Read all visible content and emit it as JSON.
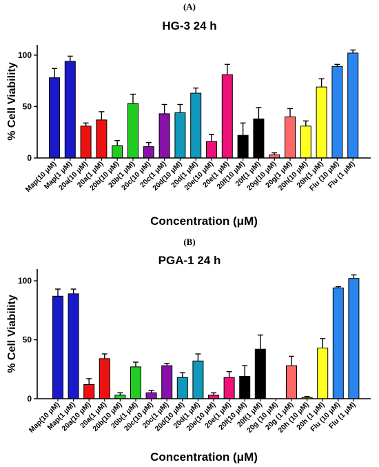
{
  "chart_data": [
    {
      "panel_label": "(A)",
      "type": "bar",
      "title": "HG-3 24 h",
      "xlabel": "Concentration (μM)",
      "ylabel": "% Cell Viability",
      "ylim": [
        0,
        110
      ],
      "yticks": [
        0,
        50,
        100
      ],
      "grid": false,
      "categories": [
        "Map(10 μM)",
        "Map(1 μM)",
        "20a(10 μM)",
        "20a(1 μM)",
        "20b(10 μM)",
        "20b(1 μM)",
        "20c(10 μM)",
        "20c(1 μM)",
        "20d(10 μM)",
        "20d(1 μM)",
        "20e(10 μM)",
        "20e(1 μM)",
        "20f(10 μM)",
        "20f(1 μM)",
        "20g(10 μM)",
        "20g(1 μM)",
        "20h(10 μM)",
        "20h(1 μM)",
        "Flu (10 μM)",
        "Flu (1 μM)"
      ],
      "values": [
        78,
        94,
        31,
        37,
        12,
        53,
        11,
        43,
        44,
        63,
        16,
        81,
        22,
        38,
        3,
        40,
        31,
        69,
        89,
        102
      ],
      "errors": [
        9,
        5,
        3,
        8,
        5,
        9,
        4,
        9,
        8,
        5,
        7,
        10,
        12,
        11,
        2,
        8,
        5,
        8,
        2,
        3
      ],
      "colors": [
        "#1a1acc",
        "#1a1acc",
        "#ee1111",
        "#ee1111",
        "#22cc22",
        "#22cc22",
        "#8811aa",
        "#8811aa",
        "#1199bb",
        "#1199bb",
        "#ee1177",
        "#ee1177",
        "#000000",
        "#000000",
        "#ff6666",
        "#ff6666",
        "#ffff22",
        "#ffff22",
        "#2a86ee",
        "#2a86ee"
      ]
    },
    {
      "panel_label": "(B)",
      "type": "bar",
      "title": "PGA-1 24 h",
      "xlabel": "Concentration (μM)",
      "ylabel": "% Cell Viability",
      "ylim": [
        0,
        110
      ],
      "yticks": [
        0,
        50,
        100
      ],
      "grid": false,
      "categories": [
        "Map(10 μM)",
        "Map(1 μM)",
        "20a(10 μM)",
        "20a(1 μM)",
        "20b(10 μM)",
        "20b(1 μM)",
        "20c(10 μM)",
        "20c(1 μM)",
        "20d(10 μM)",
        "20d(1 μM)",
        "20e(10 μM)",
        "20e(1 μM)",
        "20f(10 μM)",
        "20f(1 μM)",
        "20g (10 μM)",
        "20g (1 μM)",
        "20h (10 μM)",
        "20h (1 μM)",
        "Flu (10 μM)",
        "Flu (1 μM)"
      ],
      "values": [
        87,
        89,
        12,
        34,
        3,
        27,
        5,
        28,
        18,
        32,
        3,
        18,
        19,
        42,
        0,
        28,
        1,
        43,
        94,
        102
      ],
      "errors": [
        6,
        4,
        5,
        4,
        2,
        4,
        2,
        2,
        4,
        6,
        2,
        5,
        9,
        12,
        0,
        8,
        1,
        8,
        1,
        3
      ],
      "colors": [
        "#1a1acc",
        "#1a1acc",
        "#ee1111",
        "#ee1111",
        "#22cc22",
        "#22cc22",
        "#8811aa",
        "#8811aa",
        "#1199bb",
        "#1199bb",
        "#ee1177",
        "#ee1177",
        "#000000",
        "#000000",
        "#ff6666",
        "#ff6666",
        "#ffff22",
        "#ffff22",
        "#2a86ee",
        "#2a86ee"
      ]
    }
  ]
}
